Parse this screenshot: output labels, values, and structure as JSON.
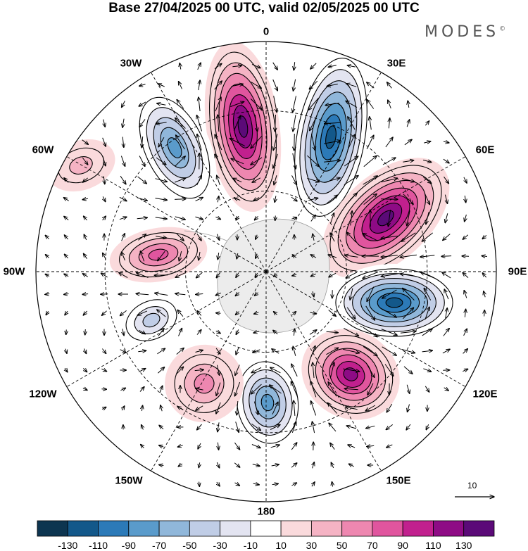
{
  "title": "Base 27/04/2025 00 UTC, valid 02/05/2025 00 UTC",
  "brand": "MODES",
  "brand_mark": "©",
  "longitude_labels": [
    "0",
    "30E",
    "60E",
    "90E",
    "120E",
    "150E",
    "180",
    "150W",
    "120W",
    "90W",
    "60W",
    "30W"
  ],
  "reference_vector_label": "10",
  "colorbar": {
    "colors": [
      "#0d3550",
      "#13588a",
      "#2c7ab8",
      "#5a9bcb",
      "#90b7da",
      "#c0cde6",
      "#e3e4f1",
      "#ffffff",
      "#fadadc",
      "#f5b3c4",
      "#ee87b0",
      "#e0559e",
      "#c1208e",
      "#8e0b85",
      "#5b0a78"
    ],
    "tick_labels": [
      "-130",
      "-110",
      "-90",
      "-70",
      "-50",
      "-30",
      "-10",
      "10",
      "30",
      "50",
      "70",
      "90",
      "110",
      "130"
    ]
  },
  "anomaly_centers": [
    {
      "id": "pos-0",
      "sign": "+",
      "level": 130
    },
    {
      "id": "neg-30e",
      "sign": "-",
      "level": -130
    },
    {
      "id": "pos-60e",
      "sign": "+",
      "level": 130
    },
    {
      "id": "neg-90e",
      "sign": "-",
      "level": -130
    },
    {
      "id": "pos-130e",
      "sign": "+",
      "level": 110
    },
    {
      "id": "neg-175e",
      "sign": "-",
      "level": -90
    },
    {
      "id": "pos-145w",
      "sign": "+",
      "level": 50
    },
    {
      "id": "neg-115w",
      "sign": "-",
      "level": -50
    },
    {
      "id": "pos-95w",
      "sign": "+",
      "level": 70
    },
    {
      "id": "neg-35w",
      "sign": "-",
      "level": -90
    },
    {
      "id": "pos-65w",
      "sign": "+",
      "level": 30
    }
  ]
}
